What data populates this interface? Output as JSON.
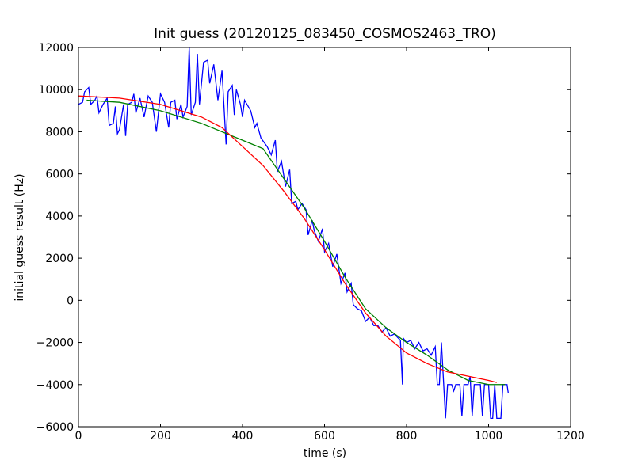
{
  "chart_data": {
    "type": "line",
    "title": "Init guess (20120125_083450_COSMOS2463_TRO)",
    "x_label": "time (s)",
    "y_label": "initial guess result (Hz)",
    "xlim": [
      0,
      1200
    ],
    "xticks": [
      0,
      200,
      400,
      600,
      800,
      1000,
      1200
    ],
    "ylim": [
      -6000,
      12000
    ],
    "yticks": [
      {
        "value": -6000,
        "label": "−6000"
      },
      {
        "value": -4000,
        "label": "−4000"
      },
      {
        "value": -2000,
        "label": "−2000"
      },
      0,
      2000,
      4000,
      6000,
      8000,
      10000,
      12000
    ],
    "series": [
      {
        "color": "#0000ff",
        "x": [
          0,
          10,
          15,
          25,
          30,
          40,
          45,
          50,
          60,
          70,
          75,
          85,
          90,
          95,
          100,
          110,
          115,
          120,
          130,
          135,
          140,
          150,
          160,
          170,
          180,
          190,
          200,
          210,
          220,
          225,
          235,
          240,
          250,
          255,
          265,
          270,
          275,
          285,
          290,
          295,
          305,
          315,
          320,
          330,
          340,
          350,
          360,
          365,
          375,
          380,
          385,
          395,
          400,
          405,
          420,
          430,
          435,
          445,
          460,
          470,
          480,
          485,
          495,
          505,
          515,
          520,
          530,
          535,
          545,
          555,
          560,
          570,
          575,
          585,
          595,
          600,
          610,
          620,
          630,
          640,
          650,
          655,
          665,
          670,
          680,
          690,
          700,
          710,
          720,
          730,
          740,
          750,
          760,
          770,
          780,
          785,
          790,
          792,
          800,
          810,
          820,
          830,
          840,
          850,
          860,
          870,
          875,
          880,
          885,
          895,
          900,
          910,
          915,
          920,
          930,
          935,
          940,
          950,
          955,
          960,
          965,
          980,
          985,
          990,
          1000,
          1005,
          1010,
          1015,
          1020,
          1030,
          1035,
          1045,
          1048
        ],
        "values": [
          9300,
          9400,
          9900,
          10100,
          9300,
          9500,
          9700,
          8900,
          9300,
          9600,
          8300,
          8400,
          9200,
          7900,
          8100,
          9300,
          7800,
          9300,
          9400,
          9800,
          8900,
          9600,
          8700,
          9700,
          9400,
          8000,
          9800,
          9400,
          8200,
          9400,
          9500,
          8600,
          9300,
          8700,
          9200,
          12000,
          8800,
          9400,
          11700,
          9300,
          11300,
          11400,
          10300,
          11200,
          9500,
          10900,
          7400,
          9900,
          10200,
          8800,
          10000,
          9300,
          8700,
          9500,
          9000,
          8200,
          8400,
          7700,
          7300,
          6900,
          7600,
          6100,
          6600,
          5400,
          6200,
          4600,
          4700,
          4300,
          4600,
          4300,
          3100,
          3800,
          3300,
          2800,
          3400,
          2300,
          2700,
          1600,
          2200,
          800,
          1300,
          400,
          800,
          -200,
          -400,
          -500,
          -1000,
          -800,
          -1200,
          -1200,
          -1500,
          -1300,
          -1700,
          -1600,
          -1800,
          -1900,
          -4000,
          -1800,
          -2000,
          -1900,
          -2300,
          -2000,
          -2400,
          -2300,
          -2600,
          -2200,
          -4000,
          -4000,
          -2000,
          -5600,
          -4000,
          -4000,
          -4300,
          -4000,
          -4000,
          -5500,
          -4000,
          -4000,
          -3600,
          -5500,
          -4000,
          -4000,
          -5500,
          -4000,
          -4000,
          -5600,
          -5600,
          -4000,
          -5600,
          -5600,
          -4000,
          -4000,
          -4400
        ]
      },
      {
        "color": "#008000",
        "x": [
          20,
          100,
          200,
          300,
          400,
          450,
          500,
          550,
          600,
          650,
          700,
          750,
          800,
          850,
          900,
          950,
          1000,
          1040
        ],
        "values": [
          9500,
          9400,
          9000,
          8400,
          7600,
          7200,
          5800,
          4400,
          2800,
          1100,
          -400,
          -1300,
          -2000,
          -2600,
          -3300,
          -3800,
          -4000,
          -4000
        ]
      },
      {
        "color": "#ff0000",
        "x": [
          0,
          100,
          200,
          300,
          350,
          400,
          450,
          500,
          550,
          600,
          650,
          700,
          750,
          800,
          850,
          900,
          950,
          1000,
          1020
        ],
        "values": [
          9700,
          9600,
          9300,
          8700,
          8200,
          7300,
          6400,
          5200,
          3900,
          2400,
          800,
          -600,
          -1700,
          -2500,
          -3000,
          -3400,
          -3600,
          -3800,
          -3900
        ]
      }
    ]
  }
}
